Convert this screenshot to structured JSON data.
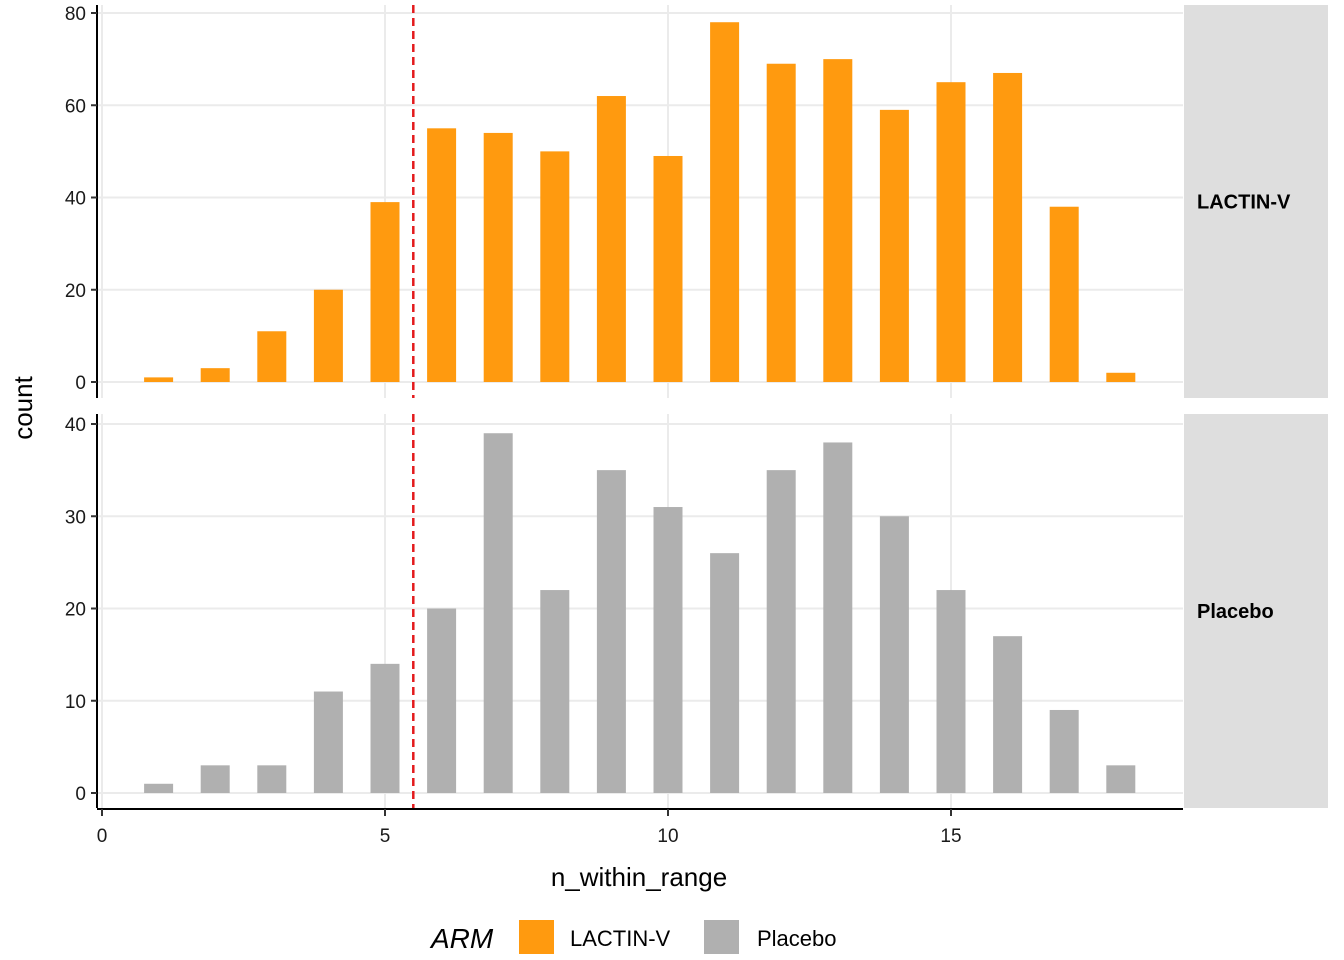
{
  "chart_data": {
    "type": "bar",
    "x": [
      1,
      2,
      3,
      4,
      5,
      6,
      7,
      8,
      9,
      10,
      11,
      12,
      13,
      14,
      15,
      16,
      17,
      18
    ],
    "xlabel": "n_within_range",
    "ylabel": "count",
    "xlim": [
      0,
      19
    ],
    "xticks": [
      0,
      5,
      10,
      15
    ],
    "reference_line": {
      "x": 5.5,
      "style": "dashed",
      "color": "#e31a1c"
    },
    "facets": [
      {
        "name": "LACTIN-V",
        "values": [
          1,
          3,
          11,
          20,
          39,
          55,
          54,
          50,
          62,
          49,
          78,
          69,
          70,
          59,
          65,
          67,
          38,
          2
        ],
        "ylim": [
          0,
          80
        ],
        "yticks": [
          0,
          20,
          40,
          60,
          80
        ]
      },
      {
        "name": "Placebo",
        "values": [
          1,
          3,
          3,
          11,
          14,
          20,
          39,
          22,
          35,
          31,
          26,
          35,
          38,
          30,
          22,
          17,
          9,
          3
        ],
        "ylim": [
          0,
          40
        ],
        "yticks": [
          0,
          10,
          20,
          30,
          40
        ]
      }
    ],
    "legend": {
      "title": "ARM",
      "position": "bottom",
      "entries": [
        {
          "label": "LACTIN-V",
          "color": "#ff9a0f"
        },
        {
          "label": "Placebo",
          "color": "#b0b0b0"
        }
      ]
    },
    "grid": true
  }
}
